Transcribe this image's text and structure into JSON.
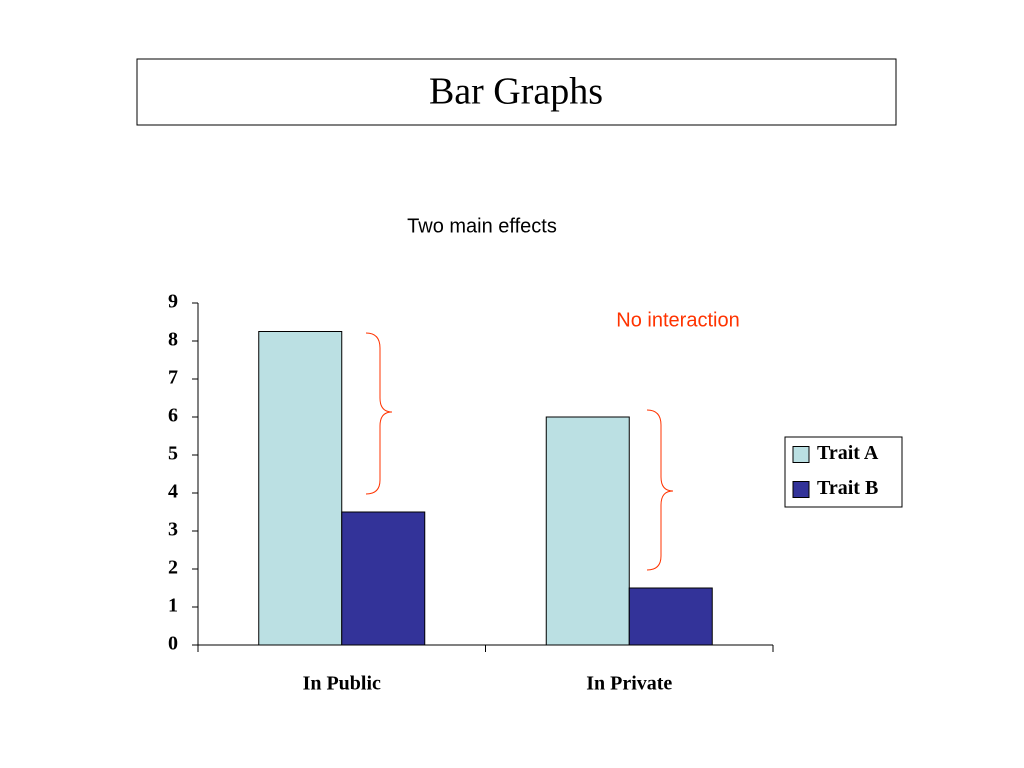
{
  "slide_title": "Bar Graphs",
  "chart_data": {
    "type": "bar",
    "title": "Two main effects",
    "annotation": "No interaction",
    "categories": [
      "In Public",
      "In Private"
    ],
    "series": [
      {
        "name": "Trait A",
        "color": "#bbe0e3",
        "values": [
          8.25,
          6
        ]
      },
      {
        "name": "Trait B",
        "color": "#333399",
        "values": [
          3.5,
          1.5
        ]
      }
    ],
    "ylim": [
      0,
      9
    ],
    "yticks": [
      0,
      1,
      2,
      3,
      4,
      5,
      6,
      7,
      8,
      9
    ],
    "legend": "right"
  }
}
